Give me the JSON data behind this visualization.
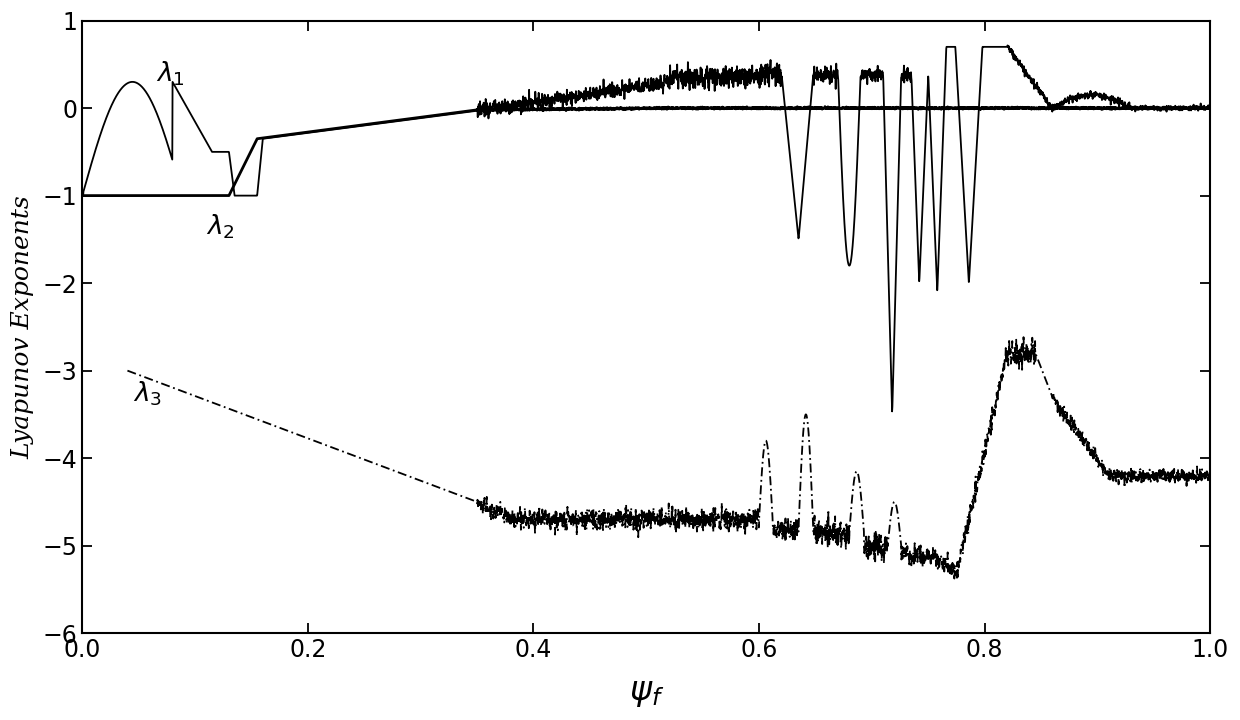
{
  "xlabel": "$\\psi_f$",
  "ylabel": "Lyapunov Exponents",
  "xlim": [
    0,
    1
  ],
  "ylim": [
    -6,
    1
  ],
  "yticks": [
    1,
    0,
    -1,
    -2,
    -3,
    -4,
    -5,
    -6
  ],
  "xticks": [
    0,
    0.2,
    0.4,
    0.6,
    0.8,
    1.0
  ],
  "lambda1_label": "$\\lambda_1$",
  "lambda2_label": "$\\lambda_2$",
  "lambda3_label": "$\\lambda_3$",
  "background_color": "#ffffff",
  "line_color": "#000000"
}
